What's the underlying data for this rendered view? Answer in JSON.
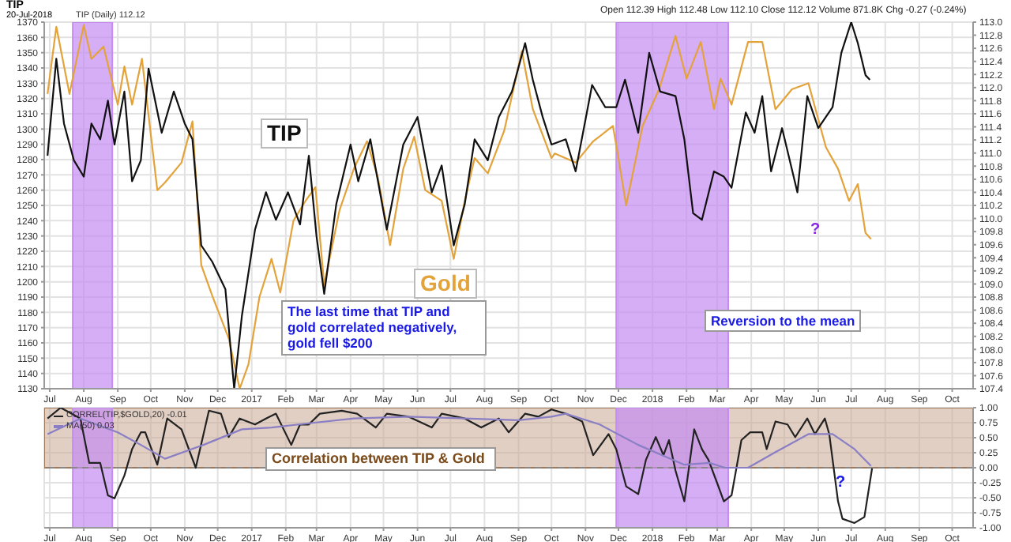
{
  "chart_data": [
    {
      "type": "line",
      "title": "TIP",
      "subtitle": "20-Jul-2018",
      "annotations": [
        "TIP (Daily) 112.12",
        "Open 112.39 High 112.48 Low 112.10 Close 112.12 Volume 871.8K Chg -0.27 (-0.24%)",
        "The last time that TIP and gold correlated negatively, gold fell $200",
        "Reversion to the mean",
        "?"
      ],
      "legend": false,
      "grid": true,
      "xlim": [
        "2016-06-26",
        "2018-10-20"
      ],
      "xticks": [
        {
          "value": "2016-07-01",
          "label": "Jul"
        },
        {
          "value": "2016-08-01",
          "label": "Aug"
        },
        {
          "value": "2016-09-01",
          "label": "Sep"
        },
        {
          "value": "2016-10-01",
          "label": "Oct"
        },
        {
          "value": "2016-11-01",
          "label": "Nov"
        },
        {
          "value": "2016-12-01",
          "label": "Dec"
        },
        {
          "value": "2017-01-01",
          "label": "2017"
        },
        {
          "value": "2017-02-01",
          "label": "Feb"
        },
        {
          "value": "2017-03-01",
          "label": "Mar"
        },
        {
          "value": "2017-04-01",
          "label": "Apr"
        },
        {
          "value": "2017-05-01",
          "label": "May"
        },
        {
          "value": "2017-06-01",
          "label": "Jun"
        },
        {
          "value": "2017-07-01",
          "label": "Jul"
        },
        {
          "value": "2017-08-01",
          "label": "Aug"
        },
        {
          "value": "2017-09-01",
          "label": "Sep"
        },
        {
          "value": "2017-10-01",
          "label": "Oct"
        },
        {
          "value": "2017-11-01",
          "label": "Nov"
        },
        {
          "value": "2017-12-01",
          "label": "Dec"
        },
        {
          "value": "2018-01-01",
          "label": "2018"
        },
        {
          "value": "2018-02-01",
          "label": "Feb"
        },
        {
          "value": "2018-03-01",
          "label": "Mar"
        },
        {
          "value": "2018-04-01",
          "label": "Apr"
        },
        {
          "value": "2018-05-01",
          "label": "May"
        },
        {
          "value": "2018-06-01",
          "label": "Jun"
        },
        {
          "value": "2018-07-01",
          "label": "Jul"
        },
        {
          "value": "2018-08-01",
          "label": "Aug"
        },
        {
          "value": "2018-09-01",
          "label": "Sep"
        },
        {
          "value": "2018-10-01",
          "label": "Oct"
        }
      ],
      "ylim": [
        1130,
        1370
      ],
      "yticks": [
        1130,
        1140,
        1150,
        1160,
        1170,
        1180,
        1190,
        1200,
        1210,
        1220,
        1230,
        1240,
        1250,
        1260,
        1270,
        1280,
        1290,
        1300,
        1310,
        1320,
        1330,
        1340,
        1350,
        1360,
        1370
      ],
      "y2lim": [
        107.4,
        113.0
      ],
      "y2ticks": [
        107.4,
        107.6,
        107.8,
        {
          "value": 108,
          "label": "108.0"
        },
        108.2,
        108.4,
        108.6,
        108.8,
        {
          "value": 109,
          "label": "109.0"
        },
        109.2,
        109.4,
        109.6,
        109.8,
        {
          "value": 110,
          "label": "110.0"
        },
        110.2,
        110.4,
        110.6,
        110.8,
        {
          "value": 111,
          "label": "111.0"
        },
        111.2,
        111.4,
        111.6,
        111.8,
        {
          "value": 112,
          "label": "112.0"
        },
        112.2,
        112.4,
        112.6,
        112.8,
        {
          "value": 113,
          "label": "113.0"
        }
      ],
      "bands": [
        {
          "axis": "x",
          "from": "2016-07-22",
          "to": "2016-08-27",
          "color": "#c58cf2"
        },
        {
          "axis": "x",
          "from": "2017-11-29",
          "to": "2018-03-11",
          "color": "#c58cf2"
        }
      ],
      "series": [
        {
          "name": "Gold",
          "color": "#e3a33a",
          "x": [
            "2016-06-29",
            "2016-07-07",
            "2016-07-19",
            "2016-08-01",
            "2016-08-08",
            "2016-08-19",
            "2016-09-01",
            "2016-09-07",
            "2016-09-14",
            "2016-09-23",
            "2016-10-07",
            "2016-10-14",
            "2016-10-29",
            "2016-11-08",
            "2016-11-16",
            "2016-11-26",
            "2016-12-11",
            "2016-12-21",
            "2016-12-29",
            "2017-01-08",
            "2017-01-19",
            "2017-01-27",
            "2017-02-08",
            "2017-02-19",
            "2017-02-28",
            "2017-03-08",
            "2017-03-22",
            "2017-04-04",
            "2017-04-16",
            "2017-04-26",
            "2017-05-07",
            "2017-05-19",
            "2017-05-29",
            "2017-06-08",
            "2017-06-23",
            "2017-07-04",
            "2017-07-14",
            "2017-07-23",
            "2017-08-04",
            "2017-08-19",
            "2017-09-04",
            "2017-09-14",
            "2017-10-01",
            "2017-10-04",
            "2017-10-23",
            "2017-11-08",
            "2017-11-26",
            "2017-12-01",
            "2017-12-08",
            "2017-12-23",
            "2018-01-07",
            "2018-01-22",
            "2018-02-01",
            "2018-02-14",
            "2018-02-26",
            "2018-03-04",
            "2018-03-14",
            "2018-03-29",
            "2018-04-11",
            "2018-04-23",
            "2018-05-08",
            "2018-05-23",
            "2018-06-08",
            "2018-06-19",
            "2018-06-29",
            "2018-07-07",
            "2018-07-14",
            "2018-07-19"
          ],
          "values": [
            1323,
            1367,
            1323,
            1368,
            1346,
            1354,
            1316,
            1341,
            1316,
            1346,
            1260,
            1265,
            1278,
            1305,
            1211,
            1191,
            1163,
            1130,
            1146,
            1190,
            1215,
            1193,
            1240,
            1253,
            1262,
            1198,
            1247,
            1274,
            1292,
            1268,
            1224,
            1274,
            1295,
            1260,
            1253,
            1215,
            1253,
            1281,
            1271,
            1299,
            1351,
            1313,
            1281,
            1284,
            1278,
            1292,
            1302,
            1281,
            1250,
            1302,
            1326,
            1361,
            1333,
            1357,
            1313,
            1333,
            1316,
            1357,
            1357,
            1313,
            1326,
            1330,
            1288,
            1274,
            1253,
            1264,
            1232,
            1228
          ]
        },
        {
          "name": "TIP",
          "color": "#111111",
          "axis": "y2",
          "x": [
            "2016-06-29",
            "2016-07-07",
            "2016-07-14",
            "2016-07-23",
            "2016-08-01",
            "2016-08-08",
            "2016-08-16",
            "2016-08-23",
            "2016-08-29",
            "2016-09-07",
            "2016-09-14",
            "2016-09-22",
            "2016-09-29",
            "2016-10-11",
            "2016-10-22",
            "2016-11-01",
            "2016-11-08",
            "2016-11-16",
            "2016-11-26",
            "2016-12-08",
            "2016-12-16",
            "2016-12-23",
            "2017-01-04",
            "2017-01-14",
            "2017-01-23",
            "2017-02-03",
            "2017-02-14",
            "2017-02-22",
            "2017-03-01",
            "2017-03-08",
            "2017-03-19",
            "2017-04-01",
            "2017-04-08",
            "2017-04-19",
            "2017-05-04",
            "2017-05-19",
            "2017-06-01",
            "2017-06-14",
            "2017-06-23",
            "2017-07-04",
            "2017-07-14",
            "2017-07-23",
            "2017-08-04",
            "2017-08-14",
            "2017-08-26",
            "2017-09-07",
            "2017-09-14",
            "2017-09-23",
            "2017-10-01",
            "2017-10-14",
            "2017-10-23",
            "2017-11-07",
            "2017-11-19",
            "2017-11-29",
            "2017-12-07",
            "2017-12-19",
            "2017-12-29",
            "2018-01-08",
            "2018-01-22",
            "2018-01-30",
            "2018-02-07",
            "2018-02-15",
            "2018-02-26",
            "2018-03-07",
            "2018-03-14",
            "2018-03-27",
            "2018-04-04",
            "2018-04-11",
            "2018-04-19",
            "2018-04-29",
            "2018-05-13",
            "2018-05-22",
            "2018-06-01",
            "2018-06-14",
            "2018-06-22",
            "2018-07-01",
            "2018-07-07",
            "2018-07-14",
            "2018-07-18"
          ],
          "values": [
            110.96,
            112.44,
            111.45,
            110.89,
            110.64,
            111.45,
            111.21,
            111.8,
            111.13,
            111.94,
            110.57,
            110.89,
            112.29,
            111.31,
            111.94,
            111.45,
            111.21,
            109.59,
            109.34,
            108.92,
            107.4,
            108.51,
            109.83,
            110.4,
            109.98,
            110.4,
            109.91,
            110.96,
            109.73,
            108.85,
            110.22,
            111.13,
            110.57,
            111.21,
            109.83,
            111.13,
            111.55,
            110.4,
            110.81,
            109.59,
            110.22,
            111.21,
            110.89,
            111.55,
            111.94,
            112.68,
            112.12,
            111.55,
            111.13,
            111.21,
            110.72,
            112.04,
            111.7,
            111.7,
            112.12,
            111.31,
            112.53,
            111.94,
            111.87,
            111.21,
            110.08,
            109.98,
            110.72,
            110.64,
            110.47,
            111.62,
            111.31,
            111.87,
            110.72,
            111.38,
            110.4,
            111.87,
            111.38,
            111.7,
            112.53,
            113.0,
            112.68,
            112.19,
            112.12
          ]
        }
      ]
    },
    {
      "type": "line",
      "annotations": [
        "Correlation between TIP & Gold",
        "?"
      ],
      "legend": "top left",
      "grid": true,
      "xlim": [
        "2016-06-26",
        "2018-10-20"
      ],
      "xticks": [
        {
          "value": "2016-07-01",
          "label": "Jul"
        },
        {
          "value": "2016-08-01",
          "label": "Aug"
        },
        {
          "value": "2016-09-01",
          "label": "Sep"
        },
        {
          "value": "2016-10-01",
          "label": "Oct"
        },
        {
          "value": "2016-11-01",
          "label": "Nov"
        },
        {
          "value": "2016-12-01",
          "label": "Dec"
        },
        {
          "value": "2017-01-01",
          "label": "2017"
        },
        {
          "value": "2017-02-01",
          "label": "Feb"
        },
        {
          "value": "2017-03-01",
          "label": "Mar"
        },
        {
          "value": "2017-04-01",
          "label": "Apr"
        },
        {
          "value": "2017-05-01",
          "label": "May"
        },
        {
          "value": "2017-06-01",
          "label": "Jun"
        },
        {
          "value": "2017-07-01",
          "label": "Jul"
        },
        {
          "value": "2017-08-01",
          "label": "Aug"
        },
        {
          "value": "2017-09-01",
          "label": "Sep"
        },
        {
          "value": "2017-10-01",
          "label": "Oct"
        },
        {
          "value": "2017-11-01",
          "label": "Nov"
        },
        {
          "value": "2017-12-01",
          "label": "Dec"
        },
        {
          "value": "2018-01-01",
          "label": "2018"
        },
        {
          "value": "2018-02-01",
          "label": "Feb"
        },
        {
          "value": "2018-03-01",
          "label": "Mar"
        },
        {
          "value": "2018-04-01",
          "label": "Apr"
        },
        {
          "value": "2018-05-01",
          "label": "May"
        },
        {
          "value": "2018-06-01",
          "label": "Jun"
        },
        {
          "value": "2018-07-01",
          "label": "Jul"
        },
        {
          "value": "2018-08-01",
          "label": "Aug"
        },
        {
          "value": "2018-09-01",
          "label": "Sep"
        },
        {
          "value": "2018-10-01",
          "label": "Oct"
        }
      ],
      "ylim": [
        -1,
        1
      ],
      "yticks": [
        {
          "value": -1,
          "label": "-1.00"
        },
        {
          "value": -0.75,
          "label": "-0.75"
        },
        {
          "value": -0.5,
          "label": "-0.50"
        },
        {
          "value": -0.25,
          "label": "-0.25"
        },
        {
          "value": 0,
          "label": "0.00"
        },
        {
          "value": 0.25,
          "label": "0.25"
        },
        {
          "value": 0.5,
          "label": "0.50"
        },
        {
          "value": 0.75,
          "label": "0.75"
        },
        {
          "value": 1,
          "label": "1.00"
        }
      ],
      "ref_lines": [
        {
          "axis": "y",
          "value": 0,
          "color": "#888888",
          "line_style": "dashed"
        }
      ],
      "bands": [
        {
          "axis": "y",
          "from": 0,
          "to": 1,
          "color": "#c9a893"
        },
        {
          "axis": "x",
          "from": "2016-07-22",
          "to": "2016-08-27",
          "color": "#c58cf2"
        },
        {
          "axis": "x",
          "from": "2017-11-29",
          "to": "2018-03-11",
          "color": "#c58cf2"
        }
      ],
      "series": [
        {
          "name": "CORREL(TIP,$GOLD,20) -0.01",
          "color": "#222222",
          "x": [
            "2016-06-29",
            "2016-07-11",
            "2016-07-29",
            "2016-08-06",
            "2016-08-16",
            "2016-08-23",
            "2016-08-29",
            "2016-09-07",
            "2016-09-14",
            "2016-09-22",
            "2016-09-26",
            "2016-10-07",
            "2016-10-16",
            "2016-10-29",
            "2016-11-11",
            "2016-11-23",
            "2016-12-04",
            "2016-12-11",
            "2016-12-21",
            "2017-01-04",
            "2017-01-14",
            "2017-01-23",
            "2017-02-06",
            "2017-02-14",
            "2017-02-22",
            "2017-03-04",
            "2017-03-24",
            "2017-04-07",
            "2017-04-24",
            "2017-05-04",
            "2017-05-24",
            "2017-06-14",
            "2017-06-23",
            "2017-07-14",
            "2017-07-29",
            "2017-08-14",
            "2017-08-23",
            "2017-09-07",
            "2017-09-19",
            "2017-10-01",
            "2017-10-14",
            "2017-10-29",
            "2017-11-08",
            "2017-11-22",
            "2017-11-29",
            "2017-12-08",
            "2017-12-19",
            "2017-12-26",
            "2018-01-04",
            "2018-01-11",
            "2018-01-16",
            "2018-01-22",
            "2018-01-30",
            "2018-02-08",
            "2018-02-15",
            "2018-02-21",
            "2018-03-01",
            "2018-03-07",
            "2018-03-14",
            "2018-03-23",
            "2018-03-31",
            "2018-04-11",
            "2018-04-15",
            "2018-04-23",
            "2018-05-04",
            "2018-05-11",
            "2018-05-22",
            "2018-05-29",
            "2018-06-07",
            "2018-06-11",
            "2018-06-19",
            "2018-06-23",
            "2018-07-04",
            "2018-07-13",
            "2018-07-20"
          ],
          "values": [
            0.82,
            1.0,
            0.82,
            0.08,
            0.08,
            -0.46,
            -0.51,
            -0.13,
            0.31,
            0.59,
            0.59,
            0.05,
            0.82,
            0.64,
            0.0,
            0.95,
            0.9,
            0.51,
            0.82,
            0.72,
            0.82,
            0.9,
            0.38,
            0.72,
            0.72,
            0.9,
            0.95,
            0.9,
            0.67,
            0.9,
            0.85,
            0.67,
            0.9,
            0.82,
            0.67,
            0.82,
            0.59,
            0.9,
            0.85,
            0.97,
            0.9,
            0.77,
            0.21,
            0.56,
            0.31,
            -0.31,
            -0.44,
            0.13,
            0.51,
            0.21,
            0.46,
            -0.05,
            -0.56,
            0.64,
            0.31,
            0.13,
            -0.26,
            -0.56,
            -0.46,
            0.46,
            0.59,
            0.59,
            0.31,
            0.77,
            0.72,
            0.51,
            0.82,
            0.56,
            0.82,
            0.56,
            -0.56,
            -0.85,
            -0.92,
            -0.82,
            -0.01
          ]
        },
        {
          "name": "MA(50) 0.03",
          "color": "#8a7fc4",
          "x": [
            "2016-06-29",
            "2016-07-29",
            "2016-09-01",
            "2016-09-22",
            "2016-10-14",
            "2016-11-18",
            "2016-12-23",
            "2017-01-19",
            "2017-02-22",
            "2017-04-04",
            "2017-05-24",
            "2017-07-14",
            "2017-09-01",
            "2017-10-01",
            "2017-10-14",
            "2017-11-14",
            "2017-12-19",
            "2018-01-30",
            "2018-02-22",
            "2018-03-08",
            "2018-03-29",
            "2018-04-23",
            "2018-05-23",
            "2018-06-14",
            "2018-07-04",
            "2018-07-19"
          ],
          "values": [
            0.56,
            0.82,
            0.59,
            0.38,
            0.15,
            0.38,
            0.64,
            0.67,
            0.74,
            0.82,
            0.85,
            0.82,
            0.79,
            0.85,
            0.9,
            0.72,
            0.38,
            0.05,
            0.08,
            0.0,
            0.0,
            0.26,
            0.56,
            0.56,
            0.31,
            0.03
          ]
        }
      ]
    }
  ]
}
